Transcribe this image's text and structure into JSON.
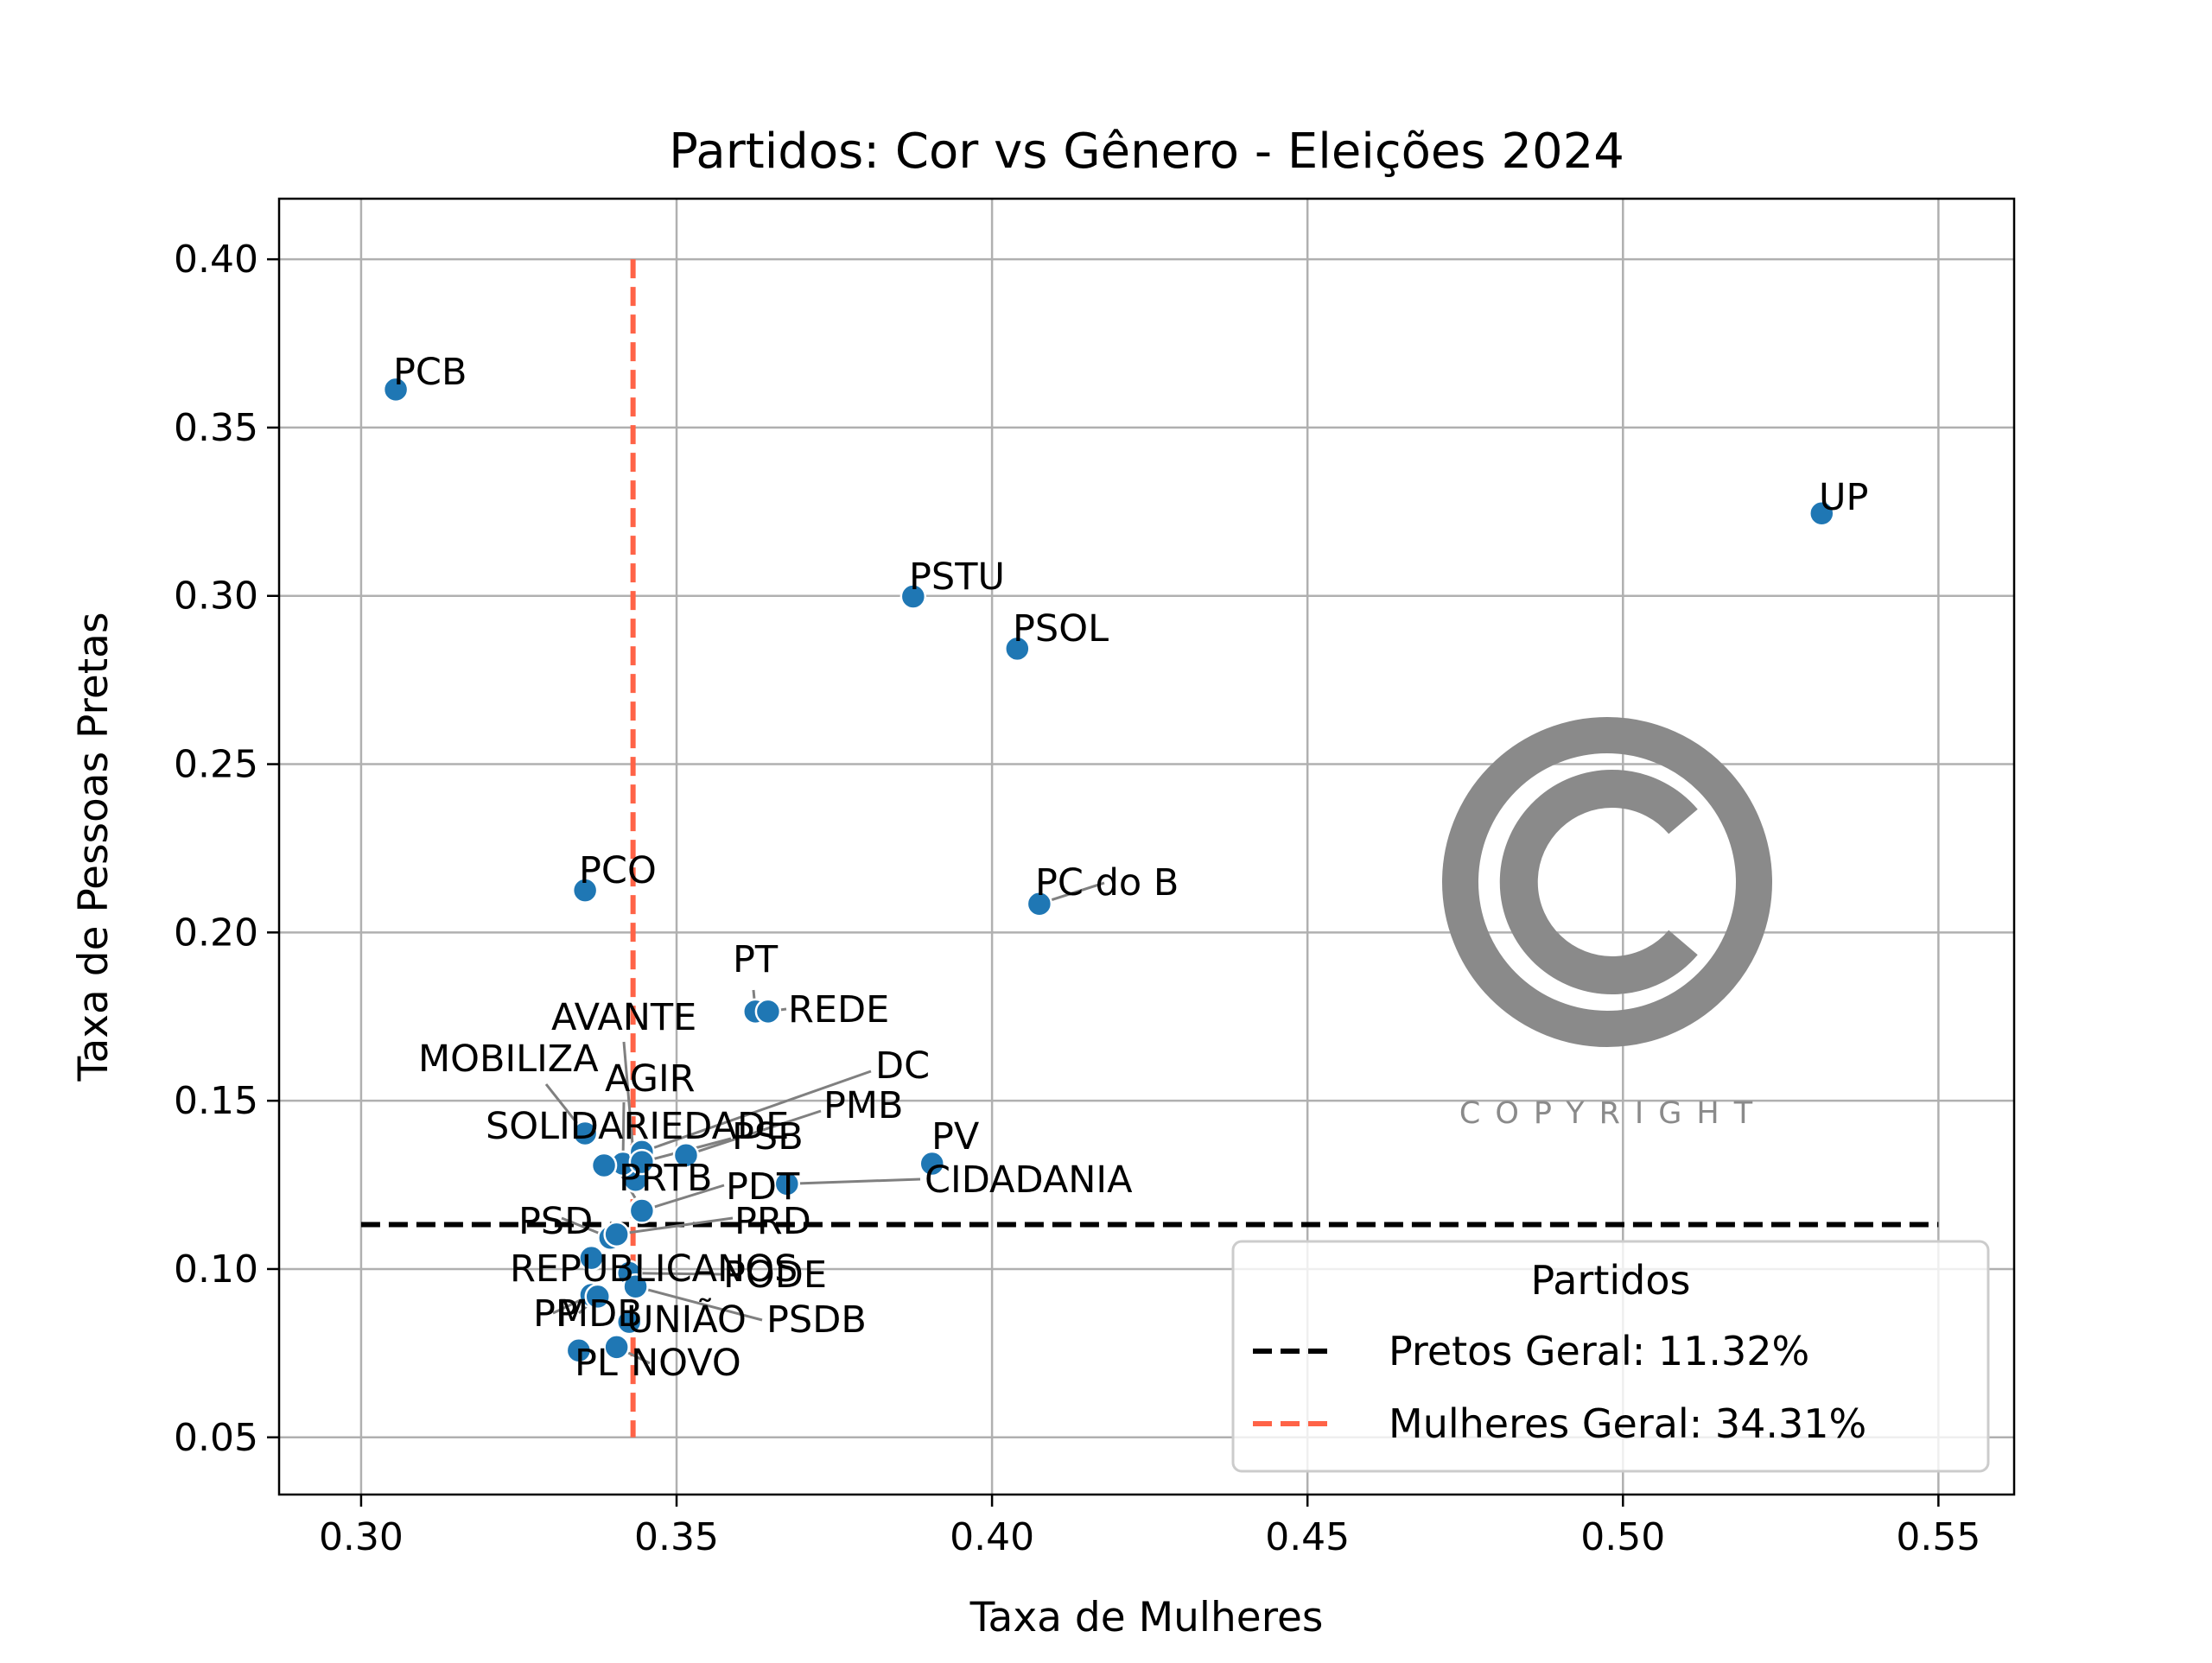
{
  "chart_data": {
    "type": "scatter",
    "title": "Partidos: Cor vs Gênero - Eleições 2024",
    "xlabel": "Taxa de Mulheres",
    "ylabel": "Taxa de Pessoas Pretas",
    "xlim": [
      0.287,
      0.562
    ],
    "ylim": [
      0.033,
      0.418
    ],
    "xticks": [
      0.3,
      0.35,
      0.4,
      0.45,
      0.5,
      0.55
    ],
    "xtick_labels": [
      "0.30",
      "0.35",
      "0.40",
      "0.45",
      "0.50",
      "0.55"
    ],
    "yticks": [
      0.05,
      0.1,
      0.15,
      0.2,
      0.25,
      0.3,
      0.35,
      0.4
    ],
    "ytick_labels": [
      "0.05",
      "0.10",
      "0.15",
      "0.20",
      "0.25",
      "0.30",
      "0.35",
      "0.40"
    ],
    "grid": true,
    "point_color": "#1f77b4",
    "points": [
      {
        "label": "PCB",
        "x": 0.3055,
        "y": 0.3613
      },
      {
        "label": "UP",
        "x": 0.5315,
        "y": 0.3245
      },
      {
        "label": "PSTU",
        "x": 0.3875,
        "y": 0.2998
      },
      {
        "label": "PSOL",
        "x": 0.404,
        "y": 0.2843
      },
      {
        "label": "PC do B",
        "x": 0.4075,
        "y": 0.2085
      },
      {
        "label": "PCO",
        "x": 0.3355,
        "y": 0.2125
      },
      {
        "label": "PT",
        "x": 0.3625,
        "y": 0.1765
      },
      {
        "label": "REDE",
        "x": 0.3645,
        "y": 0.1765
      },
      {
        "label": "AVANTE",
        "x": 0.3435,
        "y": 0.1265
      },
      {
        "label": "MOBILIZA",
        "x": 0.3355,
        "y": 0.1403
      },
      {
        "label": "AGIR",
        "x": 0.3415,
        "y": 0.1313
      },
      {
        "label": "SOLIDARIEDADE",
        "x": 0.3385,
        "y": 0.1308
      },
      {
        "label": "DC",
        "x": 0.3445,
        "y": 0.1348
      },
      {
        "label": "PMB",
        "x": 0.3515,
        "y": 0.1338
      },
      {
        "label": "PSB",
        "x": 0.3445,
        "y": 0.1318
      },
      {
        "label": "PV",
        "x": 0.3905,
        "y": 0.1313
      },
      {
        "label": "CIDADANIA",
        "x": 0.3675,
        "y": 0.1253
      },
      {
        "label": "PRTB",
        "x": 0.3445,
        "y": 0.1178
      },
      {
        "label": "PDT",
        "x": 0.3445,
        "y": 0.1173
      },
      {
        "label": "PSD",
        "x": 0.3395,
        "y": 0.1093
      },
      {
        "label": "PRD",
        "x": 0.3405,
        "y": 0.1103
      },
      {
        "label": "REPUBLICANOS",
        "x": 0.3365,
        "y": 0.1033
      },
      {
        "label": "PODE",
        "x": 0.3425,
        "y": 0.0988
      },
      {
        "label": "PP",
        "x": 0.3365,
        "y": 0.0923
      },
      {
        "label": "MDB",
        "x": 0.3375,
        "y": 0.0918
      },
      {
        "label": "UNIÃO",
        "x": 0.3425,
        "y": 0.0843
      },
      {
        "label": "PSDB",
        "x": 0.3435,
        "y": 0.0948
      },
      {
        "label": "PL",
        "x": 0.3345,
        "y": 0.0758
      },
      {
        "label": "NOVO",
        "x": 0.3405,
        "y": 0.0768
      }
    ],
    "reference_lines": [
      {
        "orientation": "horizontal",
        "value": 0.1132,
        "x_range": [
          0.3,
          0.55
        ],
        "color": "#000000",
        "style": "dashed",
        "legend": "Pretos Geral: 11.32%"
      },
      {
        "orientation": "vertical",
        "value": 0.3431,
        "y_range": [
          0.05,
          0.4
        ],
        "color": "#ff6347",
        "style": "dashed",
        "legend": "Mulheres Geral: 34.31%"
      }
    ],
    "legend": {
      "title": "Partidos",
      "placement": "lower right",
      "entries": [
        "Pretos Geral: 11.32%",
        "Mulheres Geral: 34.31%"
      ]
    },
    "watermark": {
      "icon": "copyright-icon",
      "text": "COPYRIGHT",
      "color": "#8a8a8a"
    }
  }
}
